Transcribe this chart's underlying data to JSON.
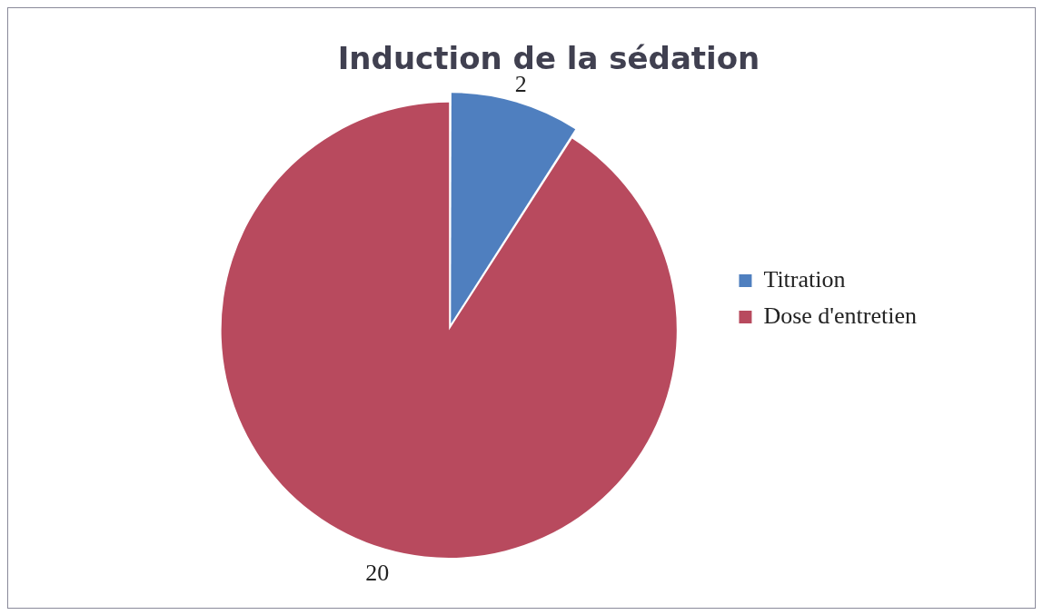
{
  "chart_data": {
    "type": "pie",
    "title": "Induction de la sédation",
    "categories": [
      "Titration",
      "Dose d'entretien"
    ],
    "values": [
      2,
      20
    ],
    "colors": [
      "#4f7fbf",
      "#b84a5e"
    ],
    "data_labels": true,
    "legend": "right"
  }
}
